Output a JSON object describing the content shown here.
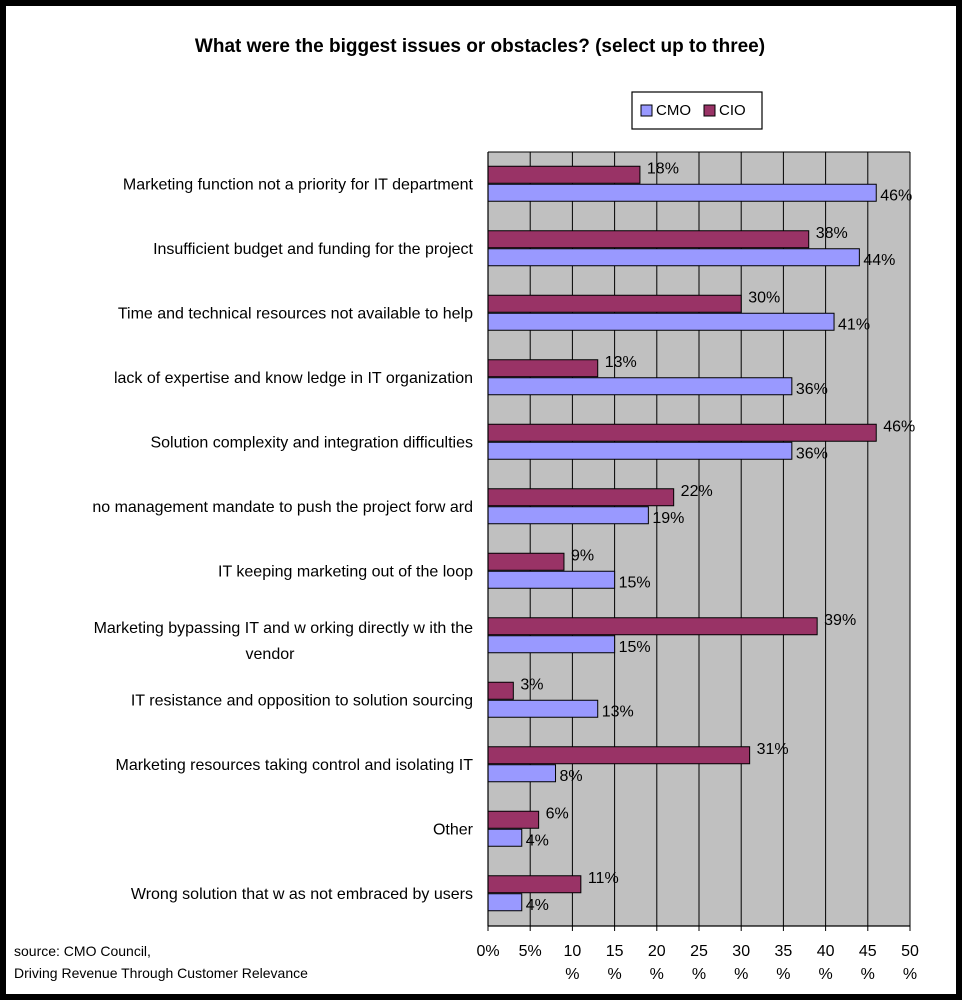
{
  "colors": {
    "cmo": "#9999ff",
    "cio": "#993366",
    "plot_bg": "#c0c0c0",
    "grid": "#000000"
  },
  "source": {
    "line1": "source: CMO Council,",
    "line2": "Driving Revenue Through Customer Relevance"
  },
  "chart_data": {
    "type": "bar",
    "orientation": "horizontal",
    "title": "What were the biggest issues or obstacles? (select up to three)",
    "legend_position": "top-right",
    "categories": [
      "Marketing function not a priority for IT department",
      "Insufficient budget and funding for the project",
      "Time and technical resources not available to help",
      "lack of expertise and know ledge in IT organization",
      "Solution complexity and integration difficulties",
      "no management mandate to push the project forw ard",
      "IT keeping marketing out of the loop",
      "Marketing bypassing IT and w orking directly w ith the vendor",
      "IT resistance and opposition to solution sourcing",
      "Marketing resources taking control and isolating IT",
      "Other",
      "Wrong solution that w as not embraced by users"
    ],
    "category_lines": [
      [
        "Marketing function not a priority for IT department"
      ],
      [
        "Insufficient budget and funding for the project"
      ],
      [
        "Time and technical resources not available to help"
      ],
      [
        "lack of expertise and know ledge in IT organization"
      ],
      [
        "Solution complexity and integration difficulties"
      ],
      [
        "no management mandate to push the project forw ard"
      ],
      [
        "IT keeping marketing out of the loop"
      ],
      [
        "Marketing bypassing IT and w orking directly w ith the",
        "vendor"
      ],
      [
        "IT resistance and opposition to solution sourcing"
      ],
      [
        "Marketing resources taking control and isolating IT"
      ],
      [
        "Other"
      ],
      [
        "Wrong solution that w as not embraced by users"
      ]
    ],
    "series": [
      {
        "name": "CMO",
        "values": [
          46,
          44,
          41,
          36,
          36,
          19,
          15,
          15,
          13,
          8,
          4,
          4
        ],
        "labels": [
          "46%",
          "44%",
          "41%",
          "36%",
          "36%",
          "19%",
          "15%",
          "15%",
          "13%",
          "8%",
          "4%",
          "4%"
        ]
      },
      {
        "name": "CIO",
        "values": [
          18,
          38,
          30,
          13,
          46,
          22,
          9,
          39,
          3,
          31,
          6,
          11
        ],
        "labels": [
          "18%",
          "38%",
          "30%",
          "13%",
          "46%",
          "22%",
          "9%",
          "39%",
          "3%",
          "31%",
          "6%",
          "11%"
        ]
      }
    ],
    "xlim": [
      0,
      50
    ],
    "x_ticks": [
      0,
      5,
      10,
      15,
      20,
      25,
      30,
      35,
      40,
      45,
      50
    ],
    "x_tick_labels": [
      [
        "0%"
      ],
      [
        "5%"
      ],
      [
        "10",
        "%"
      ],
      [
        "15",
        "%"
      ],
      [
        "20",
        "%"
      ],
      [
        "25",
        "%"
      ],
      [
        "30",
        "%"
      ],
      [
        "35",
        "%"
      ],
      [
        "40",
        "%"
      ],
      [
        "45",
        "%"
      ],
      [
        "50",
        "%"
      ]
    ],
    "xlabel": "",
    "ylabel": "",
    "grid": true
  }
}
